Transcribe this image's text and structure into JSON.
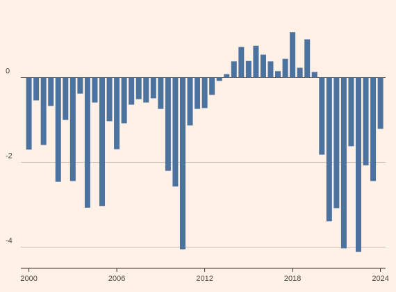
{
  "chart_data": {
    "type": "bar",
    "x": [
      2000,
      2000.5,
      2001,
      2001.5,
      2002,
      2002.5,
      2003,
      2003.5,
      2004,
      2004.5,
      2005,
      2005.5,
      2006,
      2006.5,
      2007,
      2007.5,
      2008,
      2008.5,
      2009,
      2009.5,
      2010,
      2010.5,
      2011,
      2011.5,
      2012,
      2012.5,
      2013,
      2013.5,
      2014,
      2014.5,
      2015,
      2015.5,
      2016,
      2016.5,
      2017,
      2017.5,
      2018,
      2018.5,
      2019,
      2019.5,
      2020,
      2020.5,
      2021,
      2021.5,
      2022,
      2022.5,
      2023,
      2023.5,
      2024
    ],
    "values": [
      -1.7,
      -0.54,
      -1.59,
      -0.67,
      -2.46,
      -1.0,
      -2.44,
      -0.38,
      -3.07,
      -0.59,
      -3.03,
      -1.03,
      -1.69,
      -1.08,
      -0.64,
      -0.51,
      -0.59,
      -0.49,
      -0.74,
      -2.2,
      -2.57,
      -4.05,
      -1.13,
      -0.74,
      -0.72,
      -0.41,
      -0.08,
      0.08,
      0.38,
      0.72,
      0.39,
      0.75,
      0.54,
      0.38,
      0.15,
      0.44,
      1.07,
      0.23,
      0.9,
      0.13,
      -1.82,
      -3.39,
      -3.08,
      -4.03,
      -1.62,
      -4.11,
      -2.07,
      -2.44,
      -1.21
    ],
    "color": "#4c72a0",
    "xlim": [
      1999.45,
      2024.35
    ],
    "xticks": [
      2000,
      2006,
      2012,
      2018,
      2024
    ],
    "ylim": [
      -4.5,
      1.5
    ],
    "yticks": [
      -4,
      -2,
      0
    ],
    "grid": true
  }
}
